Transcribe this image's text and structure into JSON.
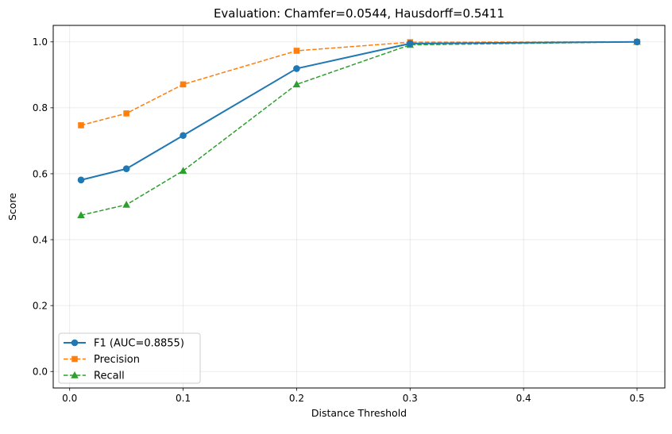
{
  "chart_data": {
    "type": "line",
    "title": "Evaluation: Chamfer=0.0544, Hausdorff=0.5411",
    "xlabel": "Distance Threshold",
    "ylabel": "Score",
    "xlim": [
      -0.0145,
      0.5245
    ],
    "ylim": [
      -0.05,
      1.05
    ],
    "xticks": [
      0.0,
      0.1,
      0.2,
      0.3,
      0.4,
      0.5
    ],
    "xtick_labels": [
      "0.0",
      "0.1",
      "0.2",
      "0.3",
      "0.4",
      "0.5"
    ],
    "yticks": [
      0.0,
      0.2,
      0.4,
      0.6,
      0.8,
      1.0
    ],
    "ytick_labels": [
      "0.0",
      "0.2",
      "0.4",
      "0.6",
      "0.8",
      "1.0"
    ],
    "grid": true,
    "legend_position": "lower-left",
    "x": [
      0.01,
      0.05,
      0.1,
      0.2,
      0.3,
      0.5
    ],
    "series": [
      {
        "name": "F1 (AUC=0.8855)",
        "values": [
          0.581,
          0.615,
          0.716,
          0.919,
          0.995,
          1.0
        ],
        "color": "#1f77b4",
        "marker": "circle",
        "dash": "solid"
      },
      {
        "name": "Precision",
        "values": [
          0.747,
          0.783,
          0.871,
          0.973,
          0.999,
          1.0
        ],
        "color": "#ff7f0e",
        "marker": "square",
        "dash": "dashed"
      },
      {
        "name": "Recall",
        "values": [
          0.474,
          0.506,
          0.609,
          0.871,
          0.991,
          1.0
        ],
        "color": "#2ca02c",
        "marker": "triangle",
        "dash": "dashed"
      }
    ]
  }
}
